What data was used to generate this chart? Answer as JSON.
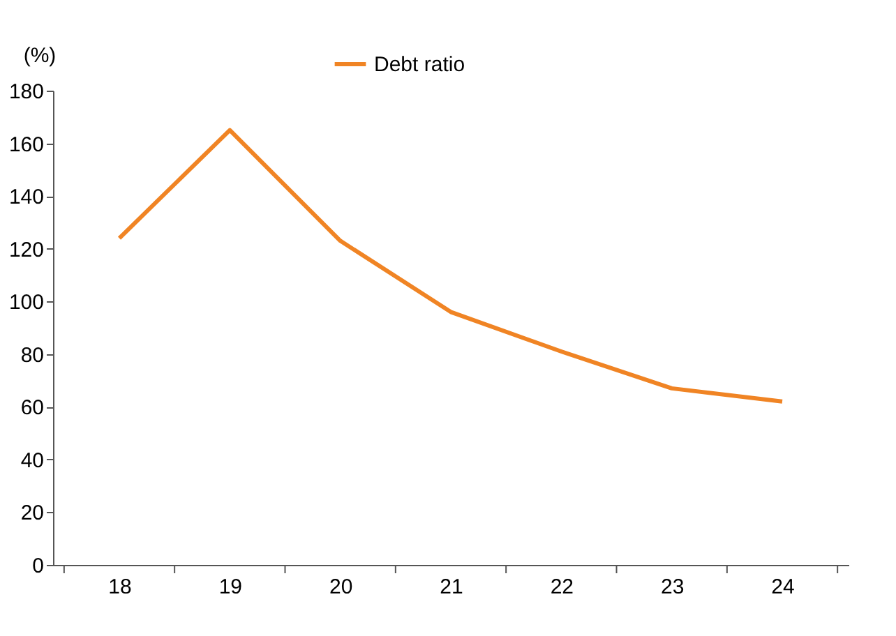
{
  "chart_data": {
    "type": "line",
    "ylabel": "(%)",
    "categories": [
      "18",
      "19",
      "20",
      "21",
      "22",
      "23",
      "24"
    ],
    "series": [
      {
        "name": "Debt ratio",
        "color": "#f08424",
        "values": [
          124,
          165,
          123,
          96,
          81,
          67,
          62
        ]
      }
    ],
    "ylim": [
      0,
      180
    ],
    "yticks": [
      0,
      20,
      40,
      60,
      80,
      100,
      120,
      140,
      160,
      180
    ],
    "grid": false,
    "legend": "top",
    "marker": "none",
    "line_style": "solid"
  }
}
